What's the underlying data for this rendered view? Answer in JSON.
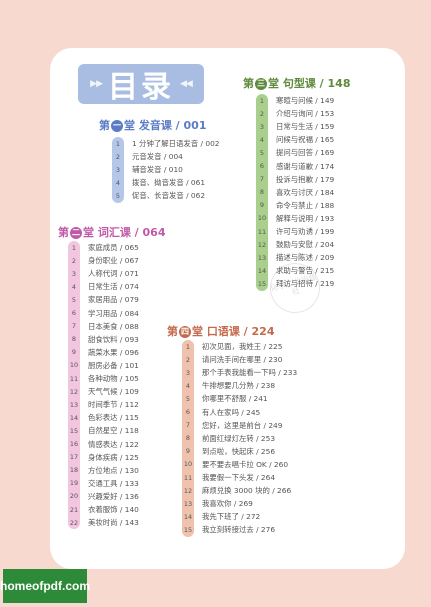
{
  "title": "目录",
  "watermark": "化学工业出版社",
  "footer": "homeofpdf.com",
  "colors": {
    "s1": "#b5c7e8",
    "s2": "#f3c6e0",
    "s3": "#a9cf8c",
    "s4": "#f0c2ae"
  },
  "sections": {
    "s1": {
      "pre": "第",
      "circle": "一",
      "post": "堂 发音课 / 001",
      "items": [
        "1 分钟了解日语发音 / 002",
        "元音发音 / 004",
        "辅音发音 / 010",
        "拨音、拗音发音 / 061",
        "促音、长音发音 / 062"
      ]
    },
    "s2": {
      "pre": "第",
      "circle": "二",
      "post": "堂 词汇课 / 064",
      "items": [
        "家庭成员 / 065",
        "身份职业 / 067",
        "人称代词 / 071",
        "日常生活 / 074",
        "家居用品 / 079",
        "学习用品 / 084",
        "日本美食 / 088",
        "甜食饮料 / 093",
        "蔬菜水果 / 096",
        "厨房必备 / 101",
        "各种动物 / 105",
        "天气气候 / 109",
        "时间季节 / 112",
        "色彩表达 / 115",
        "自然星空 / 118",
        "情感表达 / 122",
        "身体疾病 / 125",
        "方位地点 / 130",
        "交通工具 / 133",
        "兴趣爱好 / 136",
        "衣着服饰 / 140",
        "美妆时尚 / 143"
      ]
    },
    "s3": {
      "pre": "第",
      "circle": "三",
      "post": "堂 句型课 / 148",
      "items": [
        "寒暄与问候 / 149",
        "介绍与询问 / 153",
        "日常与生活 / 159",
        "问候与祝福 / 165",
        "提问与回答 / 169",
        "感谢与道歉 / 174",
        "投诉与抱歉 / 179",
        "喜欢与讨厌 / 184",
        "命令与禁止 / 188",
        "解释与说明 / 193",
        "许可与劝诱 / 199",
        "鼓励与安慰 / 204",
        "描述与陈述 / 209",
        "求助与警告 / 215",
        "拜访与招待 / 219"
      ]
    },
    "s4": {
      "pre": "第",
      "circle": "四",
      "post": "堂 口语课 / 224",
      "items": [
        "初次见面，我姓王 / 225",
        "请问洗手间在哪里 / 230",
        "那个手表我能看一下吗 / 233",
        "牛排想要几分熟 / 238",
        "你哪里不舒服 / 241",
        "有人在家吗 / 245",
        "您好，这里是前台 / 249",
        "前面红绿灯左转 / 253",
        "到点啦，快起床 / 256",
        "要不要去唱卡拉 OK / 260",
        "我要假一下头发 / 264",
        "麻烦兑换 3000 块的 / 266",
        "我喜欢你 / 269",
        "我先下班了 / 272",
        "我立刻转接过去 / 276"
      ]
    }
  }
}
